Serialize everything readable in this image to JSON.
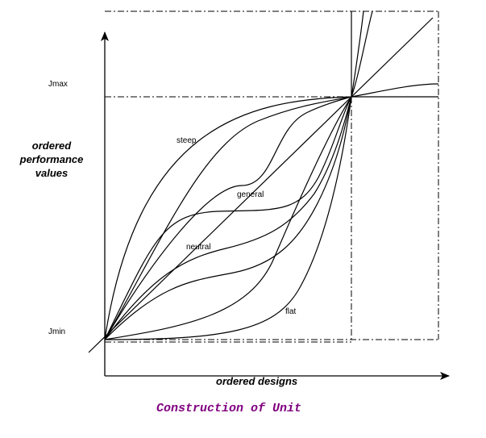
{
  "diagram": {
    "y_axis_label": [
      "ordered",
      "performance",
      "values"
    ],
    "x_axis_label": "ordered designs",
    "levels": {
      "max": "Jmax",
      "min": "Jmin"
    },
    "curve_labels": {
      "steep": "steep",
      "general": "general",
      "neutral": "neutral",
      "flat": "flat"
    },
    "caption": "Construction of Unit",
    "colors": {
      "line": "#000000",
      "caption": "#800080",
      "background": "#ffffff"
    }
  }
}
